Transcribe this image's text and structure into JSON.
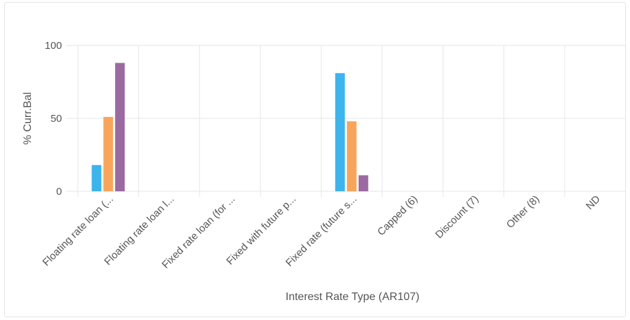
{
  "chart_data": {
    "type": "bar",
    "title": "",
    "xlabel": "Interest Rate Type (AR107)",
    "ylabel": "% Curr.Bal",
    "ylim": [
      0,
      100
    ],
    "yticks": [
      0,
      50,
      100
    ],
    "grid": true,
    "categories": [
      "Floating rate loan (...",
      "Floating rate loan l...",
      "Fixed rate loan (for ...",
      "Fixed with future p...",
      "Fixed rate (future s...",
      "Capped (6)",
      "Discount (7)",
      "Other (8)",
      "ND"
    ],
    "series": [
      {
        "color": "#3db4ec",
        "values": [
          18,
          0,
          0,
          0,
          81,
          0,
          0,
          0,
          0
        ]
      },
      {
        "color": "#f8a55c",
        "values": [
          51,
          0,
          0,
          0,
          48,
          0,
          0,
          0,
          0
        ]
      },
      {
        "color": "#9b6aa1",
        "values": [
          88,
          0,
          0,
          0,
          11,
          0,
          0,
          0,
          0
        ]
      }
    ],
    "colors": {
      "grid": "#e6e6e6",
      "axis_text": "#555555"
    }
  }
}
